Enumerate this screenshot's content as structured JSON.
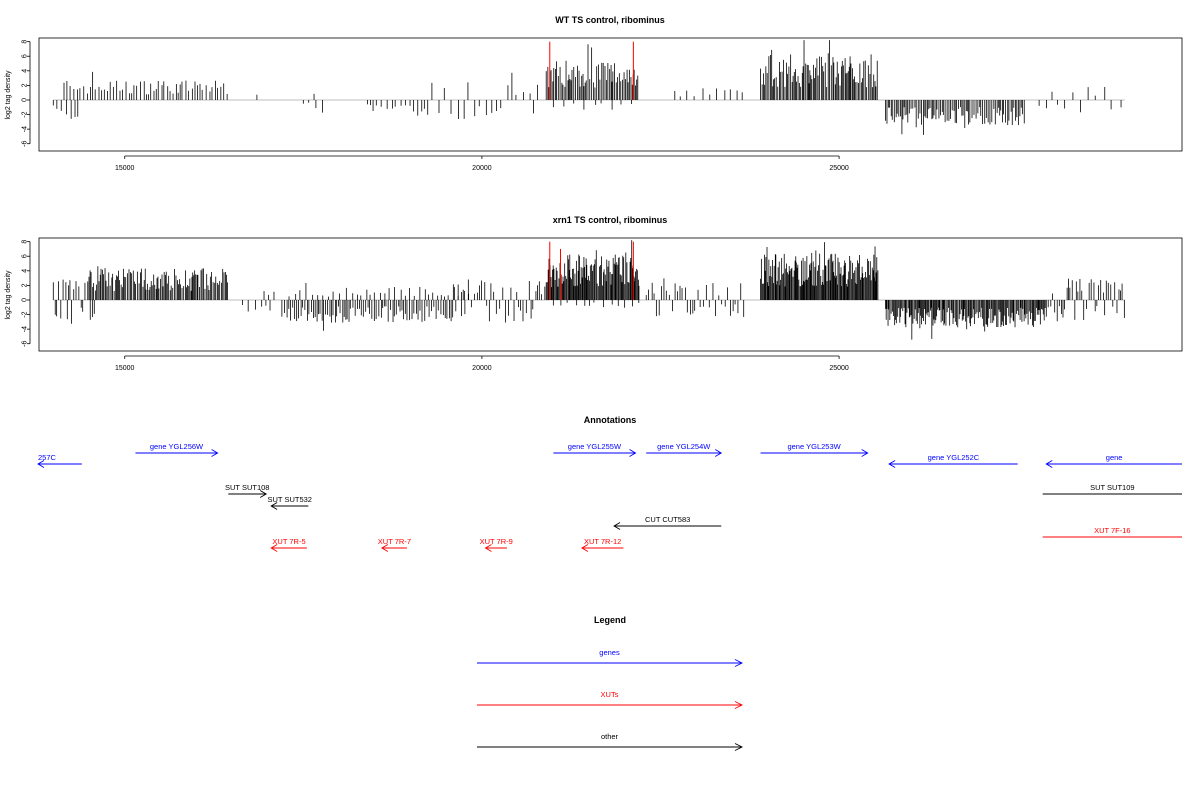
{
  "chart_data": [
    {
      "type": "bar",
      "title": "WT TS control, ribominus",
      "xlabel": "",
      "ylabel": "log2 tag density",
      "xlim": [
        13800,
        29800
      ],
      "ylim": [
        -7,
        8.5
      ],
      "yticks": [
        8,
        6,
        4,
        2,
        0,
        -2,
        -4,
        -6
      ],
      "xticks": [
        15000,
        20000,
        25000
      ],
      "grid": false,
      "segments": [
        {
          "from": 14000,
          "to": 14400,
          "mode": "sparse",
          "sign": -1,
          "amp": 2.5,
          "step": 60
        },
        {
          "from": 14150,
          "to": 16450,
          "mode": "dense",
          "sign": 1,
          "amp": 2.2,
          "step": 40
        },
        {
          "from": 16850,
          "to": 16870,
          "mode": "sparse",
          "sign": 1,
          "amp": 1.5,
          "step": 40
        },
        {
          "from": 17500,
          "to": 17800,
          "mode": "sparse",
          "sign": -1,
          "amp": 1.0,
          "step": 80
        },
        {
          "from": 17650,
          "to": 17700,
          "mode": "sparse",
          "sign": 1,
          "amp": 1.0,
          "step": 50
        },
        {
          "from": 18400,
          "to": 19300,
          "mode": "sparse",
          "sign": -1,
          "amp": 1.8,
          "step": 60
        },
        {
          "from": 19300,
          "to": 20800,
          "mode": "mixed",
          "sign": 0,
          "amp": 2.2,
          "step": 80
        },
        {
          "from": 20900,
          "to": 22200,
          "mode": "dense",
          "sign": 1,
          "amp": 4.5,
          "step": 20
        },
        {
          "from": 21000,
          "to": 22200,
          "mode": "sparse",
          "sign": -1,
          "amp": 1.2,
          "step": 120
        },
        {
          "from": 22700,
          "to": 23700,
          "mode": "sparse",
          "sign": 1,
          "amp": 1.5,
          "step": 90
        },
        {
          "from": 23900,
          "to": 25550,
          "mode": "dense",
          "sign": 1,
          "amp": 5.0,
          "step": 18
        },
        {
          "from": 25650,
          "to": 27600,
          "mode": "dense",
          "sign": -1,
          "amp": 2.8,
          "step": 22
        },
        {
          "from": 27800,
          "to": 29000,
          "mode": "mixed",
          "sign": 0,
          "amp": 1.5,
          "step": 110
        }
      ],
      "highlights": [
        {
          "x": 20950,
          "y": 8,
          "color": "#ff0000"
        },
        {
          "x": 22120,
          "y": 8,
          "color": "#ff0000"
        }
      ]
    },
    {
      "type": "bar",
      "title": "xrn1 TS control, ribominus",
      "xlabel": "",
      "ylabel": "log2 tag density",
      "xlim": [
        13800,
        29800
      ],
      "ylim": [
        -7,
        8.5
      ],
      "yticks": [
        8,
        6,
        4,
        2,
        0,
        -2,
        -4,
        -6
      ],
      "xticks": [
        15000,
        20000,
        25000
      ],
      "grid": false,
      "segments": [
        {
          "from": 14000,
          "to": 14600,
          "mode": "mixed",
          "sign": 0,
          "amp": 2.5,
          "step": 30
        },
        {
          "from": 14500,
          "to": 16450,
          "mode": "dense",
          "sign": 1,
          "amp": 3.5,
          "step": 18
        },
        {
          "from": 16650,
          "to": 17050,
          "mode": "sparse",
          "sign": -1,
          "amp": 1.5,
          "step": 80
        },
        {
          "from": 16950,
          "to": 17100,
          "mode": "sparse",
          "sign": 1,
          "amp": 1.2,
          "step": 60
        },
        {
          "from": 17200,
          "to": 19600,
          "mode": "dense",
          "sign": -1,
          "amp": 2.5,
          "step": 28
        },
        {
          "from": 17300,
          "to": 19900,
          "mode": "sparse",
          "sign": 1,
          "amp": 1.5,
          "step": 70
        },
        {
          "from": 19600,
          "to": 20900,
          "mode": "mixed",
          "sign": 0,
          "amp": 2.5,
          "step": 35
        },
        {
          "from": 20900,
          "to": 22200,
          "mode": "dense",
          "sign": 1,
          "amp": 5.0,
          "step": 12
        },
        {
          "from": 21000,
          "to": 22200,
          "mode": "sparse",
          "sign": -1,
          "amp": 1.0,
          "step": 100
        },
        {
          "from": 22300,
          "to": 23700,
          "mode": "mixed",
          "sign": 0,
          "amp": 2.0,
          "step": 40
        },
        {
          "from": 23900,
          "to": 25550,
          "mode": "dense",
          "sign": 1,
          "amp": 5.2,
          "step": 12
        },
        {
          "from": 25650,
          "to": 27900,
          "mode": "dense",
          "sign": -1,
          "amp": 3.0,
          "step": 14
        },
        {
          "from": 27900,
          "to": 29000,
          "mode": "mixed",
          "sign": 0,
          "amp": 2.5,
          "step": 28
        }
      ],
      "highlights": [
        {
          "x": 20950,
          "y": 8,
          "color": "#ff0000"
        },
        {
          "x": 21100,
          "y": 7,
          "color": "#ff0000"
        },
        {
          "x": 22120,
          "y": 8,
          "color": "#ff0000"
        }
      ]
    }
  ],
  "annotations": {
    "title": "Annotations",
    "features": [
      {
        "label": "257C",
        "start": 13500,
        "end": 14400,
        "dir": "left",
        "row": 1,
        "color": "#0000ff"
      },
      {
        "label": "gene YGL256W",
        "start": 15150,
        "end": 16300,
        "dir": "right",
        "row": 0,
        "color": "#0000ff"
      },
      {
        "label": "gene YGL255W",
        "start": 21000,
        "end": 22150,
        "dir": "right",
        "row": 0,
        "color": "#0000ff"
      },
      {
        "label": "gene YGL254W",
        "start": 22300,
        "end": 23350,
        "dir": "right",
        "row": 0,
        "color": "#0000ff"
      },
      {
        "label": "gene YGL253W",
        "start": 23900,
        "end": 25400,
        "dir": "right",
        "row": 0,
        "color": "#0000ff"
      },
      {
        "label": "gene YGL252C",
        "start": 25700,
        "end": 27500,
        "dir": "left",
        "row": 1,
        "color": "#0000ff"
      },
      {
        "label": "gene",
        "start": 27900,
        "end": 30500,
        "dir": "left",
        "row": 1,
        "color": "#0000ff"
      },
      {
        "label": "SUT SUT108",
        "start": 16450,
        "end": 16980,
        "dir": "right",
        "row": 2,
        "color": "#000000"
      },
      {
        "label": "SUT SUT532",
        "start": 17050,
        "end": 17570,
        "dir": "left",
        "row": 3,
        "color": "#000000"
      },
      {
        "label": "SUT SUT109",
        "start": 27850,
        "end": 30500,
        "dir": "none",
        "row": 2,
        "color": "#000000"
      },
      {
        "label": "CUT CUT583",
        "start": 21850,
        "end": 23350,
        "dir": "left",
        "row": 4,
        "color": "#000000"
      },
      {
        "label": "XUT 7R-5",
        "start": 17050,
        "end": 17550,
        "dir": "left",
        "row": 5,
        "color": "#ff0000"
      },
      {
        "label": "XUT 7R-7",
        "start": 18600,
        "end": 18950,
        "dir": "left",
        "row": 5,
        "color": "#ff0000"
      },
      {
        "label": "XUT 7R-9",
        "start": 20050,
        "end": 20350,
        "dir": "left",
        "row": 5,
        "color": "#ff0000"
      },
      {
        "label": "XUT 7R-12",
        "start": 21400,
        "end": 21980,
        "dir": "left",
        "row": 5,
        "color": "#ff0000"
      },
      {
        "label": "XUT 7F-16",
        "start": 27850,
        "end": 30500,
        "dir": "none",
        "row": 6,
        "color": "#ff0000"
      }
    ]
  },
  "legend": {
    "title": "Legend",
    "items": [
      {
        "label": "genes",
        "color": "#0000ff"
      },
      {
        "label": "XUTs",
        "color": "#ff0000"
      },
      {
        "label": "other",
        "color": "#000000"
      }
    ]
  }
}
